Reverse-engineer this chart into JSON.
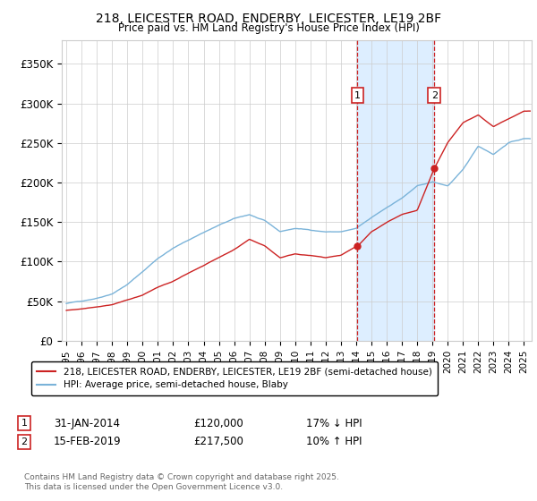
{
  "title_line1": "218, LEICESTER ROAD, ENDERBY, LEICESTER, LE19 2BF",
  "title_line2": "Price paid vs. HM Land Registry's House Price Index (HPI)",
  "hpi_color": "#7ab3d9",
  "price_color": "#cc2222",
  "shaded_color": "#ddeeff",
  "marker1_label": "31-JAN-2014",
  "marker1_price": "£120,000",
  "marker1_hpi": "17% ↓ HPI",
  "marker2_label": "15-FEB-2019",
  "marker2_price": "£217,500",
  "marker2_hpi": "10% ↑ HPI",
  "ylabel_ticks": [
    0,
    50000,
    100000,
    150000,
    200000,
    250000,
    300000,
    350000
  ],
  "ylabel_labels": [
    "£0",
    "£50K",
    "£100K",
    "£150K",
    "£200K",
    "£250K",
    "£300K",
    "£350K"
  ],
  "xlim_start": 1994.7,
  "xlim_end": 2025.5,
  "ylim": [
    0,
    380000
  ],
  "legend_label_price": "218, LEICESTER ROAD, ENDERBY, LEICESTER, LE19 2BF (semi-detached house)",
  "legend_label_hpi": "HPI: Average price, semi-detached house, Blaby",
  "footer": "Contains HM Land Registry data © Crown copyright and database right 2025.\nThis data is licensed under the Open Government Licence v3.0.",
  "t1": 2014.08,
  "t2": 2019.12,
  "price1": 120000,
  "price2": 217500,
  "hpi_knots_x": [
    1995,
    1996,
    1997,
    1998,
    1999,
    2000,
    2001,
    2002,
    2003,
    2004,
    2005,
    2006,
    2007,
    2008,
    2009,
    2010,
    2011,
    2012,
    2013,
    2014,
    2015,
    2016,
    2017,
    2018,
    2019,
    2020,
    2021,
    2022,
    2023,
    2024,
    2025
  ],
  "hpi_knots_y": [
    47000,
    50000,
    54000,
    60000,
    72000,
    88000,
    105000,
    118000,
    128000,
    138000,
    147000,
    155000,
    160000,
    152000,
    138000,
    142000,
    140000,
    138000,
    138000,
    142000,
    155000,
    168000,
    180000,
    195000,
    200000,
    195000,
    215000,
    245000,
    235000,
    250000,
    255000
  ],
  "price_knots_x": [
    1995,
    1996,
    1997,
    1998,
    1999,
    2000,
    2001,
    2002,
    2003,
    2004,
    2005,
    2006,
    2007,
    2008,
    2009,
    2010,
    2011,
    2012,
    2013,
    2014.08,
    2014.5,
    2015,
    2016,
    2017,
    2018,
    2019.12,
    2020,
    2021,
    2022,
    2023,
    2024,
    2025
  ],
  "price_knots_y": [
    38000,
    40000,
    43000,
    46000,
    52000,
    58000,
    68000,
    75000,
    85000,
    95000,
    105000,
    115000,
    128000,
    120000,
    105000,
    110000,
    108000,
    105000,
    108000,
    120000,
    128000,
    138000,
    150000,
    160000,
    165000,
    217500,
    250000,
    275000,
    285000,
    270000,
    280000,
    290000
  ]
}
